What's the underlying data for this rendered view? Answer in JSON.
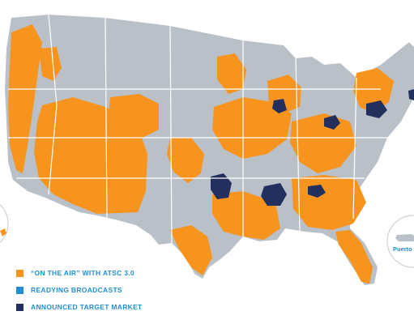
{
  "colors": {
    "on_air": "#f7941d",
    "readying": "#1f8fd1",
    "target": "#23305e",
    "base": "#b9c0c8",
    "border": "#ffffff"
  },
  "legend": {
    "items": [
      {
        "label": "“ON THE AIR” WITH ATSC 3.0",
        "color": "#f7941d"
      },
      {
        "label": "READYING BROADCASTS",
        "color": "#1f8fd1"
      },
      {
        "label": "ANNOUNCED TARGET MARKET",
        "color": "#23305e"
      }
    ]
  },
  "insets": {
    "puerto_rico_label": "Puerto R"
  }
}
